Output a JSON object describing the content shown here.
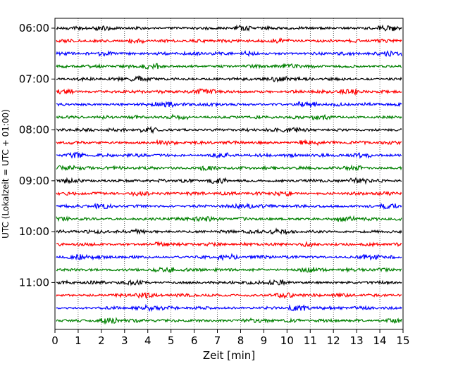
{
  "chart_data": {
    "type": "line",
    "title": "",
    "xlabel": "Zeit  [min]",
    "ylabel": "UTC (Lokalzeit = UTC + 01:00)",
    "xlim": [
      0,
      15
    ],
    "x_ticks": [
      "0",
      "1",
      "2",
      "3",
      "4",
      "5",
      "6",
      "7",
      "8",
      "9",
      "10",
      "11",
      "12",
      "13",
      "14",
      "15"
    ],
    "y_tick_labels": [
      "06:00",
      "07:00",
      "08:00",
      "09:00",
      "10:00",
      "11:00"
    ],
    "grid": "vertical dotted",
    "trace_interval_minutes": 15,
    "trace_start_times": [
      "06:00",
      "06:15",
      "06:30",
      "06:45",
      "07:00",
      "07:15",
      "07:30",
      "07:45",
      "08:00",
      "08:15",
      "08:30",
      "08:45",
      "09:00",
      "09:15",
      "09:30",
      "09:45",
      "10:00",
      "10:15",
      "10:30",
      "10:45",
      "11:00",
      "11:15",
      "11:30",
      "11:45"
    ],
    "series_colors": [
      "#000000",
      "#ff0000",
      "#0000ff",
      "#008000"
    ]
  }
}
